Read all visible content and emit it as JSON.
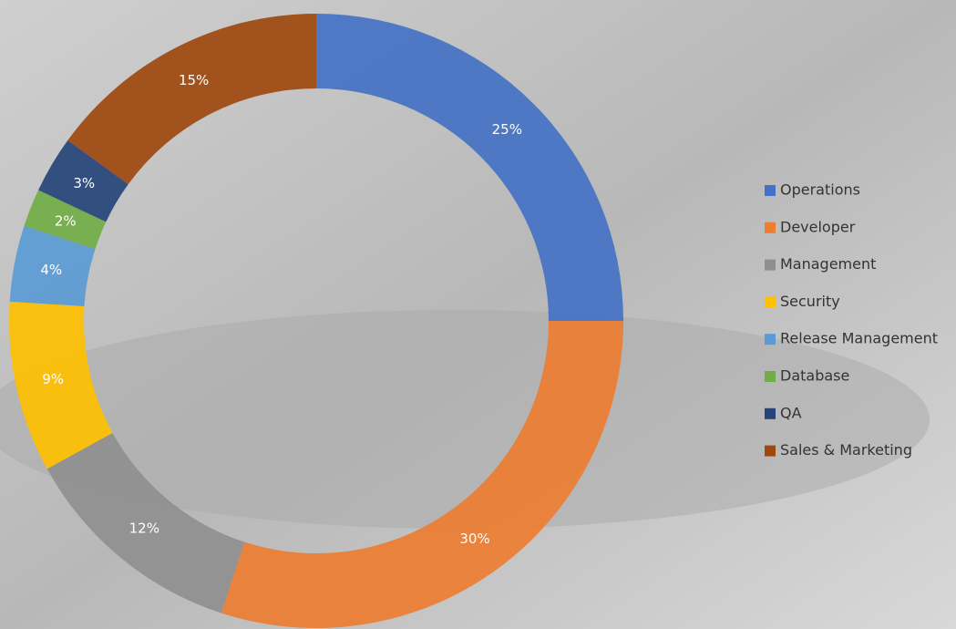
{
  "chart_data": {
    "type": "donut",
    "categories": [
      "Operations",
      "Developer",
      "Management",
      "Security",
      "Release Management",
      "Database",
      "QA",
      "Sales & Marketing"
    ],
    "values": [
      25,
      30,
      12,
      9,
      4,
      2,
      3,
      15
    ],
    "value_labels": [
      "25%",
      "30%",
      "12%",
      "9%",
      "4%",
      "2%",
      "3%",
      "15%"
    ],
    "colors": [
      "#4472c4",
      "#ed7d31",
      "#8f8f8f",
      "#ffc000",
      "#5b9bd5",
      "#70ad47",
      "#264478",
      "#9e480e"
    ],
    "legend": "right"
  }
}
